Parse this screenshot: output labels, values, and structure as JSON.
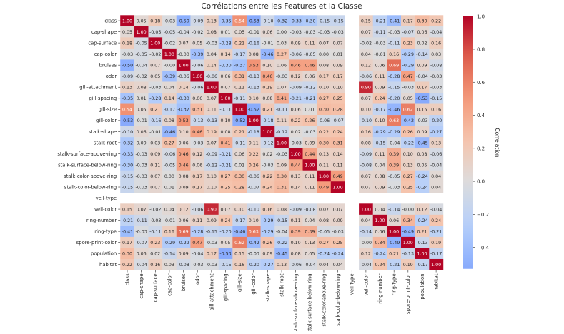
{
  "chart_data": {
    "type": "heatmap",
    "title": "Corrélations entre les Features et la Classe",
    "labels": [
      "class",
      "cap-shape",
      "cap-surface",
      "cap-color",
      "bruises",
      "odor",
      "gill-attachment",
      "gill-spacing",
      "gill-size",
      "gill-color",
      "stalk-shape",
      "stalk-root",
      "stalk-surface-above-ring",
      "stalk-surface-below-ring",
      "stalk-color-above-ring",
      "stalk-color-below-ring",
      "veil-type",
      "veil-color",
      "ring-number",
      "ring-type",
      "spore-print-color",
      "population",
      "habitat"
    ],
    "symmetric": true,
    "upper_triangle": [
      [
        1,
        0.05,
        0.18,
        -0.03,
        -0.5,
        -0.09,
        0.13,
        -0.35,
        0.54,
        -0.53,
        -0.1,
        -0.32,
        -0.33,
        -0.3,
        -0.15,
        -0.15,
        null,
        0.15,
        -0.21,
        -0.41,
        0.17,
        0.3,
        0.22
      ],
      [
        1,
        -0.05,
        -0.05,
        -0.04,
        -0.02,
        0.08,
        0.01,
        0.05,
        -0.01,
        0.06,
        0.0,
        -0.03,
        -0.03,
        -0.03,
        -0.03,
        null,
        0.07,
        -0.11,
        -0.03,
        -0.07,
        0.06,
        -0.04
      ],
      [
        1,
        -0.02,
        0.07,
        0.05,
        -0.03,
        -0.28,
        0.21,
        -0.16,
        -0.01,
        0.03,
        0.09,
        0.11,
        0.07,
        0.07,
        null,
        -0.02,
        -0.03,
        -0.11,
        0.23,
        0.02,
        0.16
      ],
      [
        1,
        -0.0,
        -0.39,
        0.04,
        0.14,
        -0.17,
        0.08,
        -0.46,
        0.27,
        -0.06,
        -0.05,
        0.0,
        0.01,
        null,
        0.04,
        -0.01,
        0.16,
        -0.29,
        -0.14,
        0.03
      ],
      [
        1,
        -0.06,
        0.14,
        -0.3,
        -0.37,
        0.53,
        0.1,
        0.06,
        0.46,
        0.46,
        0.08,
        0.09,
        null,
        0.12,
        0.06,
        0.69,
        -0.29,
        0.09,
        -0.08
      ],
      [
        1,
        -0.06,
        0.06,
        0.31,
        -0.13,
        0.46,
        -0.03,
        0.12,
        0.06,
        0.17,
        0.17,
        null,
        -0.06,
        0.11,
        -0.28,
        0.47,
        -0.04,
        -0.03
      ],
      [
        1,
        0.07,
        0.11,
        -0.13,
        0.19,
        0.07,
        -0.09,
        -0.12,
        0.1,
        0.1,
        null,
        0.9,
        0.09,
        -0.15,
        -0.03,
        0.17,
        -0.03
      ],
      [
        1,
        -0.11,
        0.1,
        0.08,
        0.41,
        -0.21,
        -0.21,
        0.27,
        0.25,
        null,
        0.07,
        0.24,
        -0.2,
        0.05,
        -0.53,
        -0.15
      ],
      [
        1,
        -0.52,
        0.21,
        -0.11,
        0.06,
        0.01,
        0.3,
        0.28,
        null,
        0.1,
        -0.17,
        -0.46,
        0.62,
        0.15,
        0.16
      ],
      [
        1,
        -0.18,
        0.11,
        0.22,
        0.26,
        -0.06,
        -0.07,
        null,
        -0.1,
        0.1,
        0.63,
        -0.42,
        -0.03,
        -0.2
      ],
      [
        1,
        -0.12,
        0.02,
        -0.03,
        0.22,
        0.24,
        null,
        0.16,
        -0.29,
        -0.29,
        0.26,
        0.09,
        -0.27
      ],
      [
        1,
        -0.03,
        0.09,
        0.3,
        0.31,
        null,
        0.08,
        -0.15,
        -0.04,
        -0.22,
        -0.45,
        0.13
      ],
      [
        1,
        0.44,
        0.13,
        0.14,
        null,
        -0.09,
        0.11,
        0.39,
        0.1,
        0.08,
        -0.06
      ],
      [
        1,
        0.11,
        0.11,
        null,
        -0.08,
        0.04,
        0.39,
        0.13,
        0.05,
        -0.04
      ],
      [
        1,
        0.49,
        null,
        0.07,
        0.08,
        -0.05,
        0.27,
        -0.24,
        0.04
      ],
      [
        1,
        null,
        0.07,
        0.09,
        -0.03,
        0.25,
        -0.24,
        0.04
      ],
      [
        null,
        null,
        null,
        null,
        null,
        null,
        null
      ],
      [
        1,
        0.04,
        -0.14,
        -0.0,
        0.12,
        -0.04
      ],
      [
        1,
        0.06,
        0.34,
        -0.24,
        0.24
      ],
      [
        1,
        -0.49,
        0.21,
        -0.21
      ],
      [
        1,
        -0.13,
        0.19
      ],
      [
        1,
        -0.17
      ],
      [
        1
      ]
    ],
    "colorbar": {
      "label": "Corrélation",
      "ticks": [
        1.0,
        0.8,
        0.6,
        0.4,
        0.2,
        0.0,
        -0.2,
        -0.4
      ],
      "tick_labels": [
        "1.0",
        "0.8",
        "0.6",
        "0.4",
        "0.2",
        "0.0",
        "−0.2",
        "−0.4"
      ],
      "range": [
        -0.53,
        1.0
      ],
      "colormap": "coolwarm",
      "center": 0
    }
  }
}
